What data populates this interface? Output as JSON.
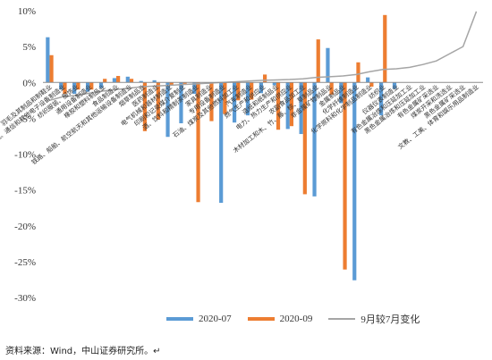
{
  "chart_data": {
    "type": "bar",
    "ylim": [
      -30,
      10
    ],
    "y_ticks": [
      "10%",
      "5%",
      "0%",
      "-5%",
      "-10%",
      "-15%",
      "-20%",
      "-25%",
      "-30%"
    ],
    "y_tick_values": [
      10,
      5,
      0,
      -5,
      -10,
      -15,
      -20,
      -25,
      -30
    ],
    "legend_position": "bottom",
    "grid": false,
    "categories": [
      "皮革、毛皮、羽毛及其制品和制鞋业",
      "计算机、通信和其他电子设备制造业",
      "纺织服装、服饰业",
      "通用设备制造业",
      "橡胶和塑料制品业",
      "食品制造业",
      "铁路、船舶、航空航天和其他运输设备制造业",
      "烟草制品业",
      "医药制造业",
      "电气机械和器材制造业",
      "印刷和记录媒介复制业",
      "酒、饮料和精制茶制造业",
      "家具制造业",
      "专用设备制造业",
      "石油、煤炭及其他燃料加工业",
      "汽车制造业",
      "燃气生产和供应业",
      "造纸和纸制品业",
      "电力、热力生产和供应业",
      "农副食品加工业",
      "木材加工和木、竹、藤、棕、草制品业",
      "非金属矿物制品业",
      "金属制品业",
      "化学纤维制造业",
      "化学原料和化学制品制造业",
      "纺织业",
      "仪器仪表制造业",
      "有色金属冶炼和压延加工业",
      "黑色金属冶炼和压延加工业",
      "有色金属矿采选业",
      "煤炭开采和洗选业",
      "黑色金属矿采选业",
      "文教、工美、体育和娱乐用品制造业"
    ],
    "series": [
      {
        "name": "2020-07",
        "color": "#5b9bd5",
        "values": [
          6.3,
          -1.0,
          -1.6,
          -1.3,
          -0.8,
          0.6,
          0.8,
          0.2,
          0.3,
          -7.6,
          -5.7,
          -1.6,
          -0.2,
          -16.8,
          -5.6,
          -4.6,
          -1.5,
          -0.4,
          -6.5,
          -7.2,
          -15.9,
          4.8,
          -2.9,
          -27.6,
          0.7,
          -4.6,
          -0.9,
          0,
          0,
          0,
          0,
          0,
          0
        ]
      },
      {
        "name": "2020-09",
        "color": "#ed7d31",
        "values": [
          3.8,
          -1.6,
          -1.0,
          -1.0,
          0.5,
          0.9,
          0.5,
          -6.8,
          -5.2,
          -0.4,
          -0.2,
          -16.7,
          -5.4,
          -4.4,
          -2.5,
          -2.4,
          1.1,
          -6.6,
          -6.1,
          -15.6,
          6.0,
          -1.7,
          -26.1,
          2.8,
          -0.6,
          9.4,
          0,
          0,
          0,
          0,
          0,
          0,
          0
        ]
      },
      {
        "name": "9月较7月变化",
        "color": "#a5a5a5",
        "type": "line",
        "values": [
          -2.5,
          -2.0,
          -1.8,
          -1.5,
          -1.2,
          -1.0,
          -0.8,
          -0.6,
          -0.5,
          -0.4,
          -0.3,
          -0.2,
          -0.1,
          0.0,
          0.1,
          0.2,
          0.3,
          0.35,
          0.4,
          0.5,
          0.7,
          0.8,
          0.9,
          1.1,
          1.5,
          1.8,
          1.9,
          2.1,
          2.5,
          3.0,
          4.0,
          5.0,
          9.9
        ]
      }
    ],
    "legend": [
      "2020-07",
      "2020-09",
      "9月较7月变化"
    ]
  },
  "source_note": "资料来源：Wind，中山证券研究所。↵"
}
